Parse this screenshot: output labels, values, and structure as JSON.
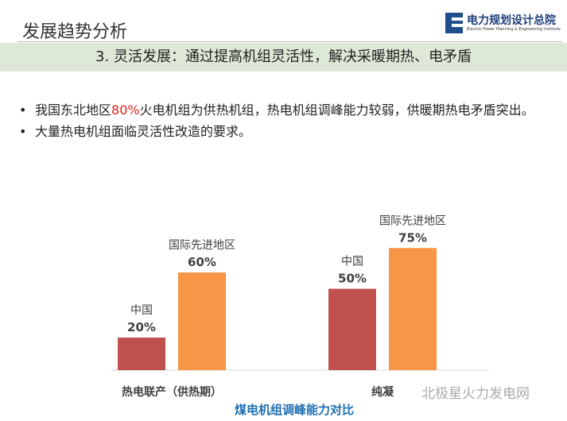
{
  "header": {
    "title": "发展趋势分析",
    "logo_name": "电力规划设计总院",
    "logo_sub": "Electric Power Planning & Engineering Institute"
  },
  "banner": "3. 灵活发展：通过提高机组灵活性，解决采暖期热、电矛盾",
  "bullets": [
    {
      "pre": "我国东北地区",
      "highlight": "80%",
      "post": "火电机组为供热机组，热电机组调峰能力较弱，供暖期热电矛盾突出。"
    },
    {
      "pre": "大量热电机组面临灵活性改造的要求。",
      "highlight": "",
      "post": ""
    }
  ],
  "colors": {
    "china": "#c0504d",
    "intl": "#f79646",
    "title": "#1f6fb3",
    "highlight": "#e0201c"
  },
  "chart_data": {
    "type": "bar",
    "title": "煤电机组调峰能力对比",
    "categories": [
      "热电联产（供热期）",
      "纯凝"
    ],
    "series": [
      {
        "name": "中国",
        "values": [
          20,
          50
        ],
        "labels": [
          "20%",
          "50%"
        ]
      },
      {
        "name": "国际先进地区",
        "values": [
          60,
          75
        ],
        "labels": [
          "60%",
          "75%"
        ]
      }
    ],
    "ylim": [
      0,
      100
    ],
    "grid": false
  },
  "watermark": "北极星火力发电网"
}
